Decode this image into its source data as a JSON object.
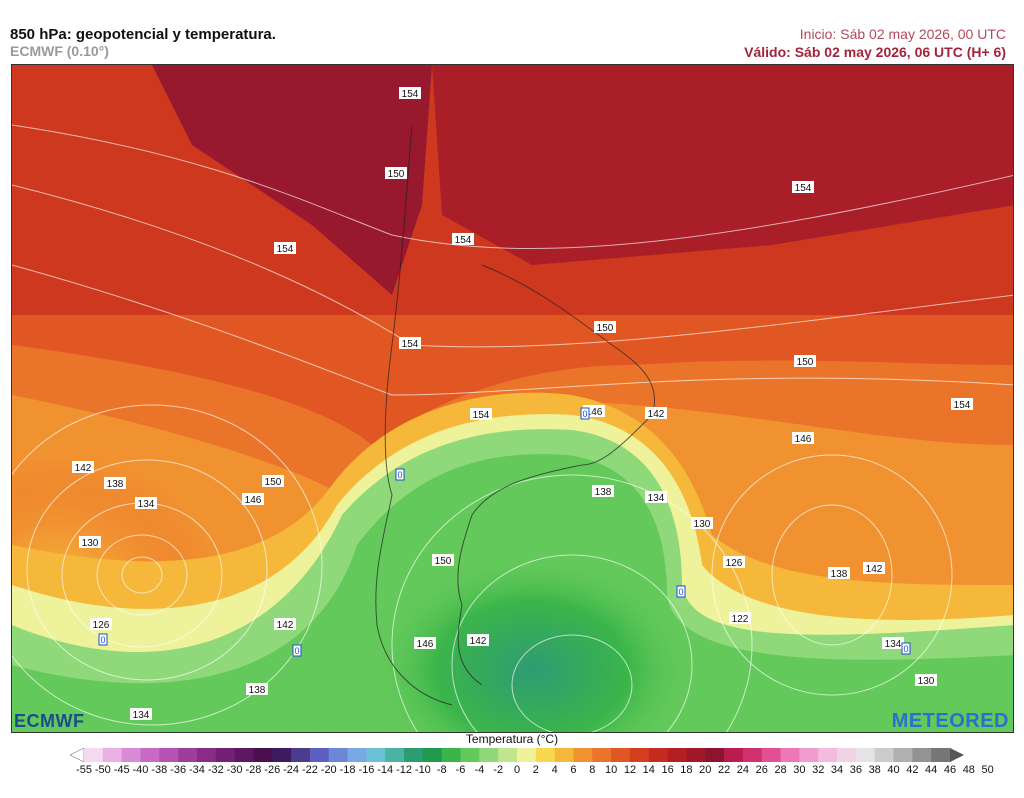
{
  "header": {
    "title": "850 hPa: geopotencial y temperatura.",
    "model": "ECMWF (0.10°)",
    "start": "Inicio: Sáb 02 may 2026, 00 UTC",
    "valid": "Válido: Sáb 02 may 2026, 06 UTC (H+ 6)"
  },
  "logos": {
    "left": "ECMWF",
    "right": "METEORED"
  },
  "map": {
    "contour_labels": [
      "154",
      "150",
      "154",
      "154",
      "154",
      "150",
      "154",
      "146",
      "142",
      "150",
      "146",
      "154",
      "154",
      "142",
      "138",
      "134",
      "146",
      "150",
      "130",
      "138",
      "134",
      "130",
      "150",
      "126",
      "138",
      "142",
      "126",
      "142",
      "146",
      "142",
      "122",
      "134",
      "0",
      "0",
      "0",
      "0",
      "0",
      "0",
      "138",
      "134",
      "130",
      "126"
    ]
  },
  "legend": {
    "title": "Temperatura (°C)",
    "ticks": [
      "-55",
      "-50",
      "-45",
      "-40",
      "-38",
      "-36",
      "-34",
      "-32",
      "-30",
      "-28",
      "-26",
      "-24",
      "-22",
      "-20",
      "-18",
      "-16",
      "-14",
      "-12",
      "-10",
      "-8",
      "-6",
      "-4",
      "-2",
      "0",
      "2",
      "4",
      "6",
      "8",
      "10",
      "12",
      "14",
      "16",
      "18",
      "20",
      "22",
      "24",
      "26",
      "28",
      "30",
      "32",
      "34",
      "36",
      "38",
      "40",
      "42",
      "44",
      "46",
      "48",
      "50"
    ],
    "colors": [
      "#ffffff",
      "#f4d9f0",
      "#e9b1e3",
      "#d98bd6",
      "#c86ac6",
      "#b552b4",
      "#9e3e9c",
      "#8a2b87",
      "#732075",
      "#5e1761",
      "#4a114e",
      "#3e1a60",
      "#4b3c8e",
      "#5d5fc0",
      "#6e86d8",
      "#79a9e5",
      "#6cc1d4",
      "#4bb3a4",
      "#2d9c73",
      "#219a4d",
      "#3bb54a",
      "#63c95a",
      "#8fd97a",
      "#bfe58f",
      "#eef29a",
      "#f7d84f",
      "#f5b83a",
      "#f19231",
      "#ea7429",
      "#e15723",
      "#d43e1e",
      "#c52b1e",
      "#b41f22",
      "#a11829",
      "#8e1331",
      "#b81d4f",
      "#d1306f",
      "#e24f94",
      "#ec78b6",
      "#f19ccf",
      "#f3bcde",
      "#f0d4e6",
      "#e6e2e6",
      "#cccccc",
      "#b0b0b0",
      "#939393",
      "#767676",
      "#555555"
    ]
  }
}
